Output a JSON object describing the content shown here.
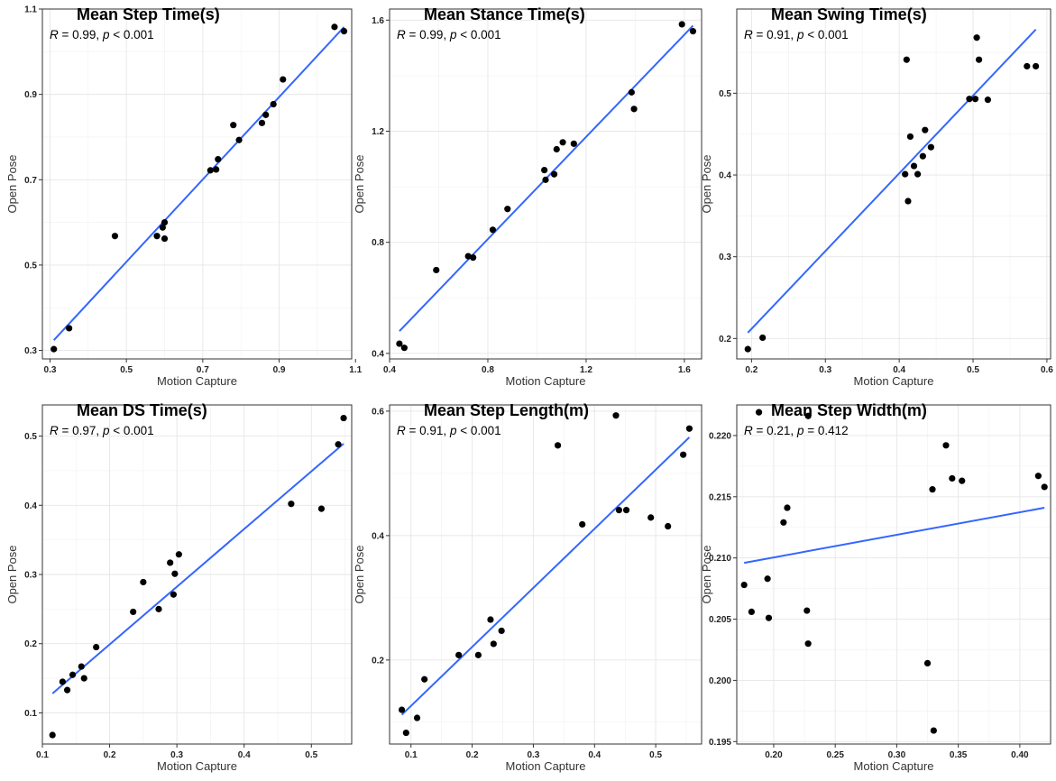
{
  "chart_data": [
    {
      "type": "scatter",
      "title": "Mean Step Time(s)",
      "stat": {
        "r": "0.99",
        "p_op": "<",
        "p": "0.001"
      },
      "xlabel": "Motion Capture",
      "ylabel": "Open Pose",
      "xlim": [
        0.28,
        1.09
      ],
      "ylim": [
        0.28,
        1.1
      ],
      "xticks": [
        0.3,
        0.5,
        0.7,
        0.9,
        1.1
      ],
      "xtick_labels": [
        "0.3",
        "0.5",
        "0.7",
        "0.9",
        "1.1"
      ],
      "yticks": [
        0.3,
        0.5,
        0.7,
        0.9,
        1.1
      ],
      "ytick_labels": [
        "0.3",
        "0.5",
        "0.7",
        "0.9",
        "1.1"
      ],
      "grid": true,
      "points": [
        [
          0.31,
          0.303
        ],
        [
          0.35,
          0.352
        ],
        [
          0.47,
          0.568
        ],
        [
          0.58,
          0.568
        ],
        [
          0.595,
          0.588
        ],
        [
          0.6,
          0.6
        ],
        [
          0.6,
          0.562
        ],
        [
          0.72,
          0.722
        ],
        [
          0.735,
          0.724
        ],
        [
          0.74,
          0.748
        ],
        [
          0.78,
          0.828
        ],
        [
          0.795,
          0.793
        ],
        [
          0.855,
          0.833
        ],
        [
          0.865,
          0.852
        ],
        [
          0.885,
          0.877
        ],
        [
          0.91,
          0.935
        ],
        [
          1.045,
          1.058
        ],
        [
          1.07,
          1.048
        ]
      ],
      "fit": [
        [
          0.31,
          0.324
        ],
        [
          1.07,
          1.058
        ]
      ]
    },
    {
      "type": "scatter",
      "title": "Mean Stance Time(s)",
      "stat": {
        "r": "0.99",
        "p_op": "<",
        "p": "0.001"
      },
      "xlabel": "Motion Capture",
      "ylabel": "Open Pose",
      "xlim": [
        0.4,
        1.67
      ],
      "ylim": [
        0.38,
        1.64
      ],
      "xticks": [
        0.4,
        0.8,
        1.2,
        1.6
      ],
      "xtick_labels": [
        "0.4",
        "0.8",
        "1.2",
        "1.6"
      ],
      "yticks": [
        0.4,
        0.8,
        1.2,
        1.6
      ],
      "ytick_labels": [
        "0.4",
        "0.8",
        "1.2",
        "1.6"
      ],
      "grid": true,
      "points": [
        [
          0.44,
          0.435
        ],
        [
          0.46,
          0.42
        ],
        [
          0.59,
          0.7
        ],
        [
          0.72,
          0.75
        ],
        [
          0.74,
          0.745
        ],
        [
          0.82,
          0.845
        ],
        [
          0.88,
          0.92
        ],
        [
          1.03,
          1.06
        ],
        [
          1.035,
          1.025
        ],
        [
          1.07,
          1.045
        ],
        [
          1.08,
          1.135
        ],
        [
          1.105,
          1.16
        ],
        [
          1.15,
          1.155
        ],
        [
          1.385,
          1.34
        ],
        [
          1.395,
          1.28
        ],
        [
          1.59,
          1.585
        ],
        [
          1.635,
          1.56
        ]
      ],
      "fit": [
        [
          0.44,
          0.48
        ],
        [
          1.635,
          1.58
        ]
      ]
    },
    {
      "type": "scatter",
      "title": "Mean Swing Time(s)",
      "stat": {
        "r": "0.91",
        "p_op": "<",
        "p": "0.001"
      },
      "xlabel": "Motion Capture",
      "ylabel": "Open Pose",
      "xlim": [
        0.18,
        0.605
      ],
      "ylim": [
        0.175,
        0.603
      ],
      "xticks": [
        0.2,
        0.3,
        0.4,
        0.5,
        0.6
      ],
      "xtick_labels": [
        "0.2",
        "0.3",
        "0.4",
        "0.5",
        "0.6"
      ],
      "yticks": [
        0.2,
        0.3,
        0.4,
        0.5
      ],
      "ytick_labels": [
        "0.2",
        "0.3",
        "0.4",
        "0.5"
      ],
      "grid": true,
      "points": [
        [
          0.195,
          0.187
        ],
        [
          0.215,
          0.201
        ],
        [
          0.408,
          0.401
        ],
        [
          0.41,
          0.541
        ],
        [
          0.412,
          0.368
        ],
        [
          0.415,
          0.447
        ],
        [
          0.42,
          0.411
        ],
        [
          0.425,
          0.401
        ],
        [
          0.432,
          0.423
        ],
        [
          0.435,
          0.455
        ],
        [
          0.443,
          0.434
        ],
        [
          0.495,
          0.493
        ],
        [
          0.503,
          0.493
        ],
        [
          0.505,
          0.568
        ],
        [
          0.508,
          0.541
        ],
        [
          0.52,
          0.492
        ],
        [
          0.573,
          0.533
        ],
        [
          0.585,
          0.533
        ]
      ],
      "fit": [
        [
          0.195,
          0.207
        ],
        [
          0.585,
          0.578
        ]
      ]
    },
    {
      "type": "scatter",
      "title": "Mean DS Time(s)",
      "stat": {
        "r": "0.97",
        "p_op": "<",
        "p": "0.001"
      },
      "xlabel": "Motion Capture",
      "ylabel": "Open Pose",
      "xlim": [
        0.1,
        0.56
      ],
      "ylim": [
        0.055,
        0.545
      ],
      "xticks": [
        0.1,
        0.2,
        0.3,
        0.4,
        0.5
      ],
      "xtick_labels": [
        "0.1",
        "0.2",
        "0.3",
        "0.4",
        "0.5"
      ],
      "yticks": [
        0.1,
        0.2,
        0.3,
        0.4,
        0.5
      ],
      "ytick_labels": [
        "0.1",
        "0.2",
        "0.3",
        "0.4",
        "0.5"
      ],
      "grid": true,
      "points": [
        [
          0.115,
          0.068
        ],
        [
          0.13,
          0.145
        ],
        [
          0.137,
          0.133
        ],
        [
          0.145,
          0.155
        ],
        [
          0.158,
          0.167
        ],
        [
          0.162,
          0.15
        ],
        [
          0.18,
          0.195
        ],
        [
          0.235,
          0.246
        ],
        [
          0.25,
          0.289
        ],
        [
          0.273,
          0.25
        ],
        [
          0.29,
          0.317
        ],
        [
          0.295,
          0.271
        ],
        [
          0.297,
          0.301
        ],
        [
          0.303,
          0.329
        ],
        [
          0.47,
          0.402
        ],
        [
          0.515,
          0.395
        ],
        [
          0.54,
          0.488
        ],
        [
          0.548,
          0.526
        ]
      ],
      "fit": [
        [
          0.115,
          0.128
        ],
        [
          0.548,
          0.489
        ]
      ]
    },
    {
      "type": "scatter",
      "title": "Mean Step Length(m)",
      "stat": {
        "r": "0.91",
        "p_op": "<",
        "p": "0.001"
      },
      "xlabel": "Motion Capture",
      "ylabel": "Open Pose",
      "xlim": [
        0.065,
        0.575
      ],
      "ylim": [
        0.065,
        0.61
      ],
      "xticks": [
        0.1,
        0.2,
        0.3,
        0.4,
        0.5
      ],
      "xtick_labels": [
        "0.1",
        "0.2",
        "0.3",
        "0.4",
        "0.5"
      ],
      "yticks": [
        0.2,
        0.4,
        0.6
      ],
      "ytick_labels": [
        "0.2",
        "0.4",
        "0.6"
      ],
      "grid": true,
      "points": [
        [
          0.085,
          0.12
        ],
        [
          0.092,
          0.083
        ],
        [
          0.11,
          0.107
        ],
        [
          0.122,
          0.169
        ],
        [
          0.178,
          0.208
        ],
        [
          0.21,
          0.208
        ],
        [
          0.23,
          0.265
        ],
        [
          0.235,
          0.226
        ],
        [
          0.248,
          0.247
        ],
        [
          0.34,
          0.545
        ],
        [
          0.38,
          0.418
        ],
        [
          0.435,
          0.593
        ],
        [
          0.44,
          0.441
        ],
        [
          0.452,
          0.441
        ],
        [
          0.492,
          0.429
        ],
        [
          0.52,
          0.415
        ],
        [
          0.545,
          0.53
        ],
        [
          0.555,
          0.572
        ]
      ],
      "fit": [
        [
          0.085,
          0.112
        ],
        [
          0.555,
          0.558
        ]
      ]
    },
    {
      "type": "scatter",
      "title": "Mean Step Width(m)",
      "stat": {
        "r": "0.21",
        "p_op": "=",
        "p": "0.412"
      },
      "xlabel": "Motion Capture",
      "ylabel": "Open Pose",
      "xlim": [
        0.17,
        0.425
      ],
      "ylim": [
        0.1948,
        0.2225
      ],
      "xticks": [
        0.2,
        0.25,
        0.3,
        0.35,
        0.4
      ],
      "xtick_labels": [
        "0.20",
        "0.25",
        "0.30",
        "0.35",
        "0.40"
      ],
      "yticks": [
        0.195,
        0.2,
        0.205,
        0.21,
        0.215,
        0.22
      ],
      "ytick_labels": [
        "0.195",
        "0.200",
        "0.205",
        "0.210",
        "0.215",
        "0.220"
      ],
      "grid": true,
      "points": [
        [
          0.176,
          0.2078
        ],
        [
          0.182,
          0.2056
        ],
        [
          0.188,
          0.2219
        ],
        [
          0.195,
          0.2083
        ],
        [
          0.196,
          0.2051
        ],
        [
          0.208,
          0.2129
        ],
        [
          0.211,
          0.2141
        ],
        [
          0.227,
          0.2057
        ],
        [
          0.228,
          0.2216
        ],
        [
          0.228,
          0.203
        ],
        [
          0.325,
          0.2014
        ],
        [
          0.329,
          0.2156
        ],
        [
          0.33,
          0.1959
        ],
        [
          0.34,
          0.2192
        ],
        [
          0.345,
          0.2165
        ],
        [
          0.353,
          0.2163
        ],
        [
          0.415,
          0.2167
        ],
        [
          0.42,
          0.2158
        ]
      ],
      "fit": [
        [
          0.176,
          0.2096
        ],
        [
          0.42,
          0.2141
        ]
      ]
    }
  ]
}
